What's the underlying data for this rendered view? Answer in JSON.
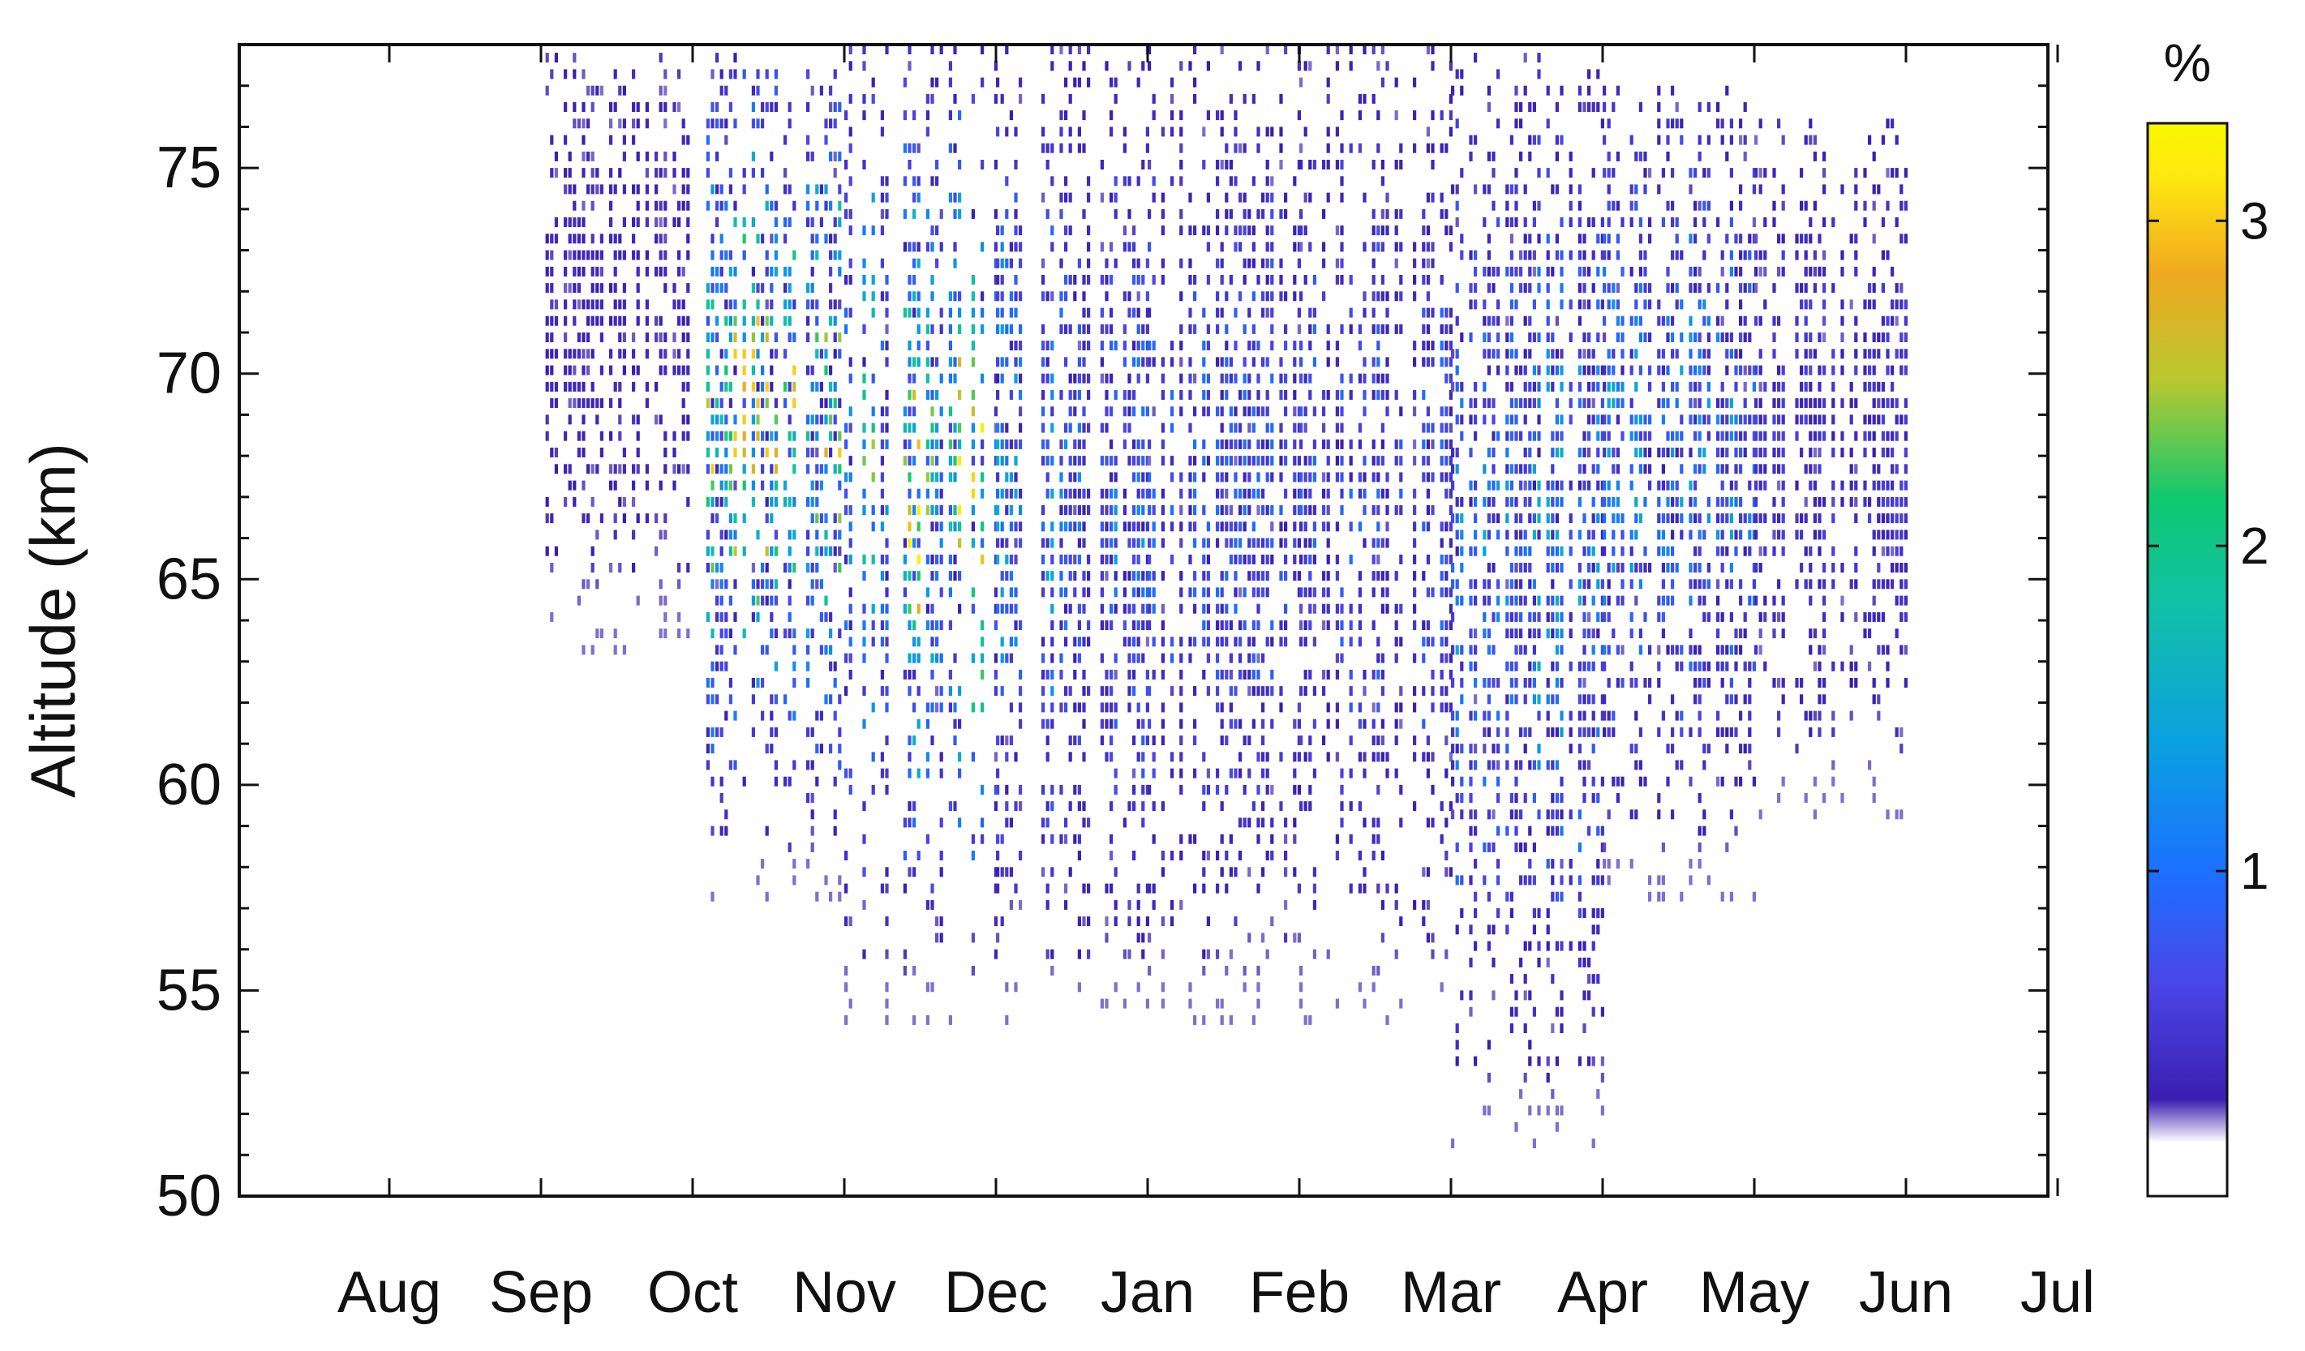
{
  "chart_data": {
    "type": "heatmap",
    "title": "",
    "xlabel": "",
    "ylabel": "Altitude (km)",
    "x_ticks": [
      "Aug",
      "Sep",
      "Oct",
      "Nov",
      "Dec",
      "Jan",
      "Feb",
      "Mar",
      "Apr",
      "May",
      "Jun",
      "Jul"
    ],
    "x_range_months": [
      0,
      12
    ],
    "ylim": [
      50,
      78
    ],
    "y_ticks": [
      50,
      55,
      60,
      65,
      70,
      75
    ],
    "grid": false,
    "colorbar": {
      "label": "%",
      "range": [
        0,
        3.3
      ],
      "ticks": [
        1,
        2,
        3
      ],
      "colormap": [
        "#ffffff",
        "#3a1fb0",
        "#4a46e8",
        "#1d6fff",
        "#0aa0e0",
        "#12c0a8",
        "#10c870",
        "#b8c830",
        "#f0a820",
        "#ffe810",
        "#f8f800"
      ]
    },
    "density_by_month": [
      {
        "month": "Aug",
        "alt_low": 0,
        "alt_high": 0,
        "peak": 0
      },
      {
        "month": "Sep",
        "alt_low": 63,
        "alt_high": 78,
        "peak": 0.4
      },
      {
        "month": "Oct",
        "alt_low": 57,
        "alt_high": 78,
        "peak": 3.0
      },
      {
        "month": "Nov",
        "alt_low": 54,
        "alt_high": 78,
        "peak": 3.2
      },
      {
        "month": "Dec",
        "alt_low": 54,
        "alt_high": 78,
        "peak": 1.5
      },
      {
        "month": "Jan",
        "alt_low": 54,
        "alt_high": 78,
        "peak": 1.0
      },
      {
        "month": "Feb",
        "alt_low": 54,
        "alt_high": 78,
        "peak": 1.0
      },
      {
        "month": "Mar",
        "alt_low": 51,
        "alt_high": 78,
        "peak": 1.6
      },
      {
        "month": "Apr",
        "alt_low": 57,
        "alt_high": 77,
        "peak": 1.5
      },
      {
        "month": "May",
        "alt_low": 59,
        "alt_high": 76,
        "peak": 0.6
      },
      {
        "month": "Jun",
        "alt_low": 0,
        "alt_high": 0,
        "peak": 0
      }
    ]
  }
}
